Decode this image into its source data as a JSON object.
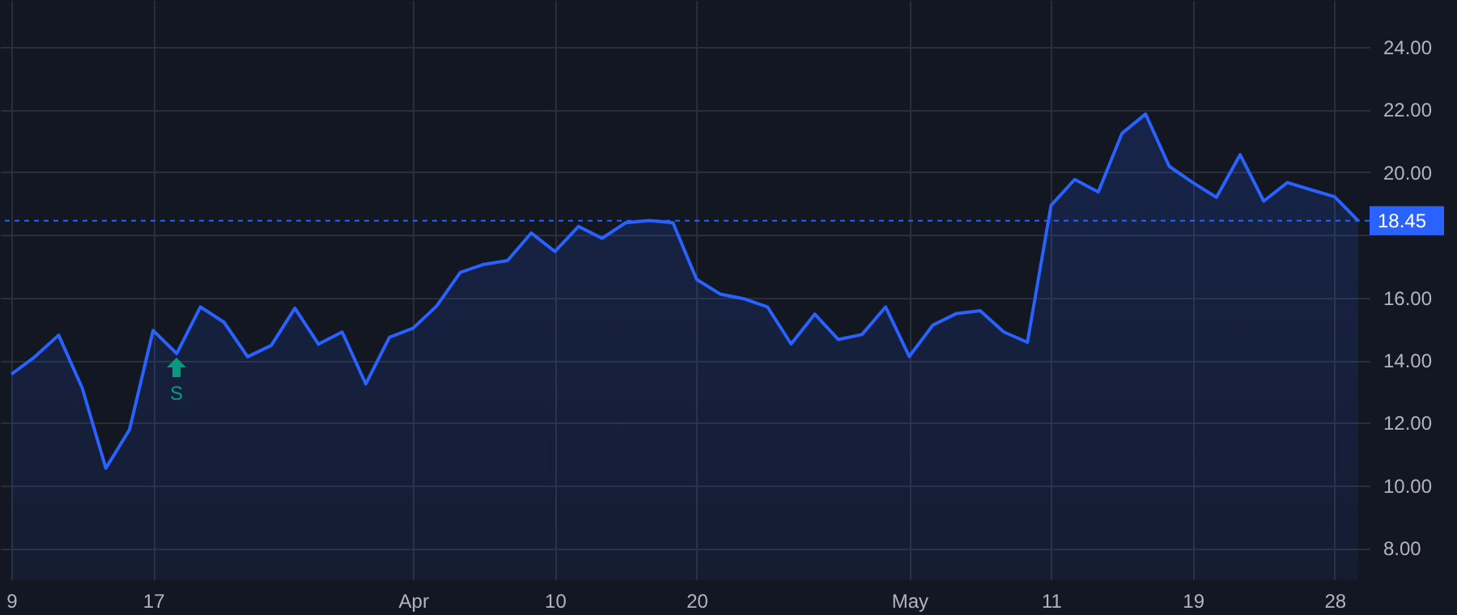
{
  "chart_data": {
    "type": "area",
    "categories": [
      "9",
      null,
      null,
      null,
      null,
      null,
      "17",
      null,
      null,
      null,
      null,
      null,
      null,
      null,
      null,
      null,
      null,
      "Apr",
      null,
      null,
      null,
      null,
      null,
      "10",
      null,
      null,
      null,
      null,
      null,
      "20",
      null,
      null,
      null,
      null,
      null,
      null,
      null,
      null,
      "May",
      null,
      null,
      null,
      null,
      null,
      "11",
      null,
      null,
      null,
      null,
      null,
      "19",
      null,
      null,
      null,
      null,
      null,
      "28",
      null
    ],
    "series": [
      {
        "color": "#2962ff",
        "values": [
          13.55,
          14.11,
          14.8,
          13.11,
          10.55,
          11.78,
          14.95,
          14.21,
          15.7,
          15.21,
          14.11,
          14.47,
          15.66,
          14.51,
          14.9,
          13.24,
          14.73,
          15.02,
          15.73,
          16.8,
          17.06,
          17.18,
          18.06,
          17.47,
          18.27,
          17.89,
          18.39,
          18.46,
          18.39,
          16.58,
          16.11,
          15.96,
          15.7,
          14.52,
          15.47,
          14.66,
          14.82,
          15.7,
          14.12,
          15.12,
          15.49,
          15.58,
          14.9,
          14.57,
          18.94,
          19.77,
          19.37,
          21.24,
          21.86,
          20.19,
          19.67,
          19.2,
          20.56,
          19.08,
          19.67,
          19.44,
          19.22,
          18.45
        ]
      }
    ],
    "ylim": [
      7.0,
      25.5
    ],
    "yticks": [
      {
        "value": 8,
        "label": "8.00"
      },
      {
        "value": 10,
        "label": "10.00"
      },
      {
        "value": 12,
        "label": "12.00"
      },
      {
        "value": 14,
        "label": "14.00"
      },
      {
        "value": 16,
        "label": "16.00"
      },
      {
        "value": 18,
        "label": null
      },
      {
        "value": 20,
        "label": "20.00"
      },
      {
        "value": 22,
        "label": "22.00"
      },
      {
        "value": 24,
        "label": "24.00"
      }
    ],
    "grid": true,
    "ref_lines": [
      {
        "axis": "y",
        "value": 18.45,
        "label": "18.45",
        "color": "#2962ff",
        "line_style": "dashed"
      }
    ],
    "annotations": [
      "S"
    ]
  }
}
